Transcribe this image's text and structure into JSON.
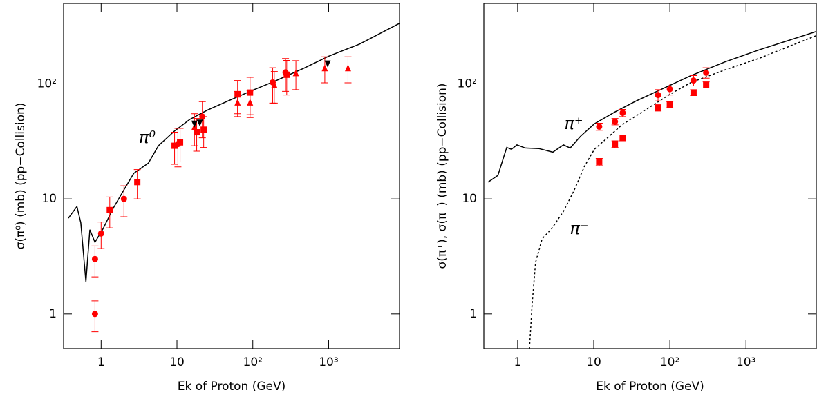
{
  "chart_data": [
    {
      "type": "scatter",
      "log_x": true,
      "log_y": true,
      "xlabel": "Ek of Proton (GeV)",
      "ylabel": "σ(π⁰) (mb) (pp−Collision)",
      "xlim": [
        0.32,
        8600
      ],
      "ylim": [
        0.5,
        500
      ],
      "xticks": [
        1,
        10,
        {
          "value": 100,
          "label": "10²"
        },
        {
          "value": 1000,
          "label": "10³"
        }
      ],
      "yticks": [
        1,
        10,
        {
          "value": 100,
          "label": "10²"
        }
      ],
      "annotations": [
        "π⁰"
      ],
      "series": [
        {
          "style": "solid",
          "color": "#000000",
          "x": [
            0.37,
            0.48,
            0.54,
            0.63,
            0.71,
            0.83,
            1.06,
            1.46,
            2.0,
            2.7,
            4.2,
            5.7,
            9.3,
            14.7,
            25,
            47,
            100,
            205,
            474,
            1000,
            2560,
            8600
          ],
          "values": [
            6.8,
            8.6,
            6.2,
            1.9,
            5.4,
            4.2,
            5.5,
            8.4,
            12,
            16.7,
            20.5,
            29,
            39,
            49,
            59,
            71,
            88,
            107,
            137,
            174,
            222,
            336
          ]
        },
        {
          "style": "circle",
          "color": "#ff0000",
          "x": [
            0.83,
            0.83,
            1.0,
            2.0,
            10.3,
            21.6,
            183,
            270
          ],
          "values": [
            3,
            1,
            5,
            10,
            30,
            52,
            103,
            126
          ],
          "errors": [
            0.9,
            0.3,
            1.3,
            3,
            11,
            18,
            35,
            40
          ]
        },
        {
          "style": "square",
          "color": "#ff0000",
          "x": [
            1.3,
            3.0,
            9.3,
            11,
            18.2,
            22.5,
            63,
            92,
            280
          ],
          "values": [
            8,
            14,
            29,
            31,
            38,
            40,
            81,
            84,
            120
          ],
          "errors": [
            2.4,
            4,
            9,
            10,
            12,
            12,
            26,
            30,
            40
          ]
        },
        {
          "style": "triangle",
          "color": "#ff0000",
          "x": [
            17,
            63,
            92,
            192,
            370,
            890,
            1800
          ],
          "values": [
            42,
            69,
            69,
            98,
            124,
            137,
            137
          ],
          "errors": [
            13,
            17,
            18,
            30,
            35,
            35,
            35
          ]
        },
        {
          "style": "triangle-down",
          "color": "#000000",
          "x": [
            17,
            20,
            970
          ],
          "values": [
            45,
            46,
            150
          ]
        }
      ]
    },
    {
      "type": "scatter",
      "log_x": true,
      "log_y": true,
      "xlabel": "Ek of Proton (GeV)",
      "ylabel": "σ(π⁺), σ(π⁻) (mb) (pp−Collision)",
      "xlim": [
        0.36,
        8400
      ],
      "ylim": [
        0.5,
        500
      ],
      "xticks": [
        1,
        10,
        {
          "value": 100,
          "label": "10²"
        },
        {
          "value": 1000,
          "label": "10³"
        }
      ],
      "yticks": [
        1,
        10,
        {
          "value": 100,
          "label": "10²"
        }
      ],
      "annotations": [
        "π⁺",
        "π⁻"
      ],
      "series": [
        {
          "style": "solid",
          "color": "#000000",
          "x": [
            0.41,
            0.55,
            0.72,
            0.83,
            0.98,
            1.26,
            1.9,
            2.9,
            4.0,
            4.9,
            6.7,
            10.2,
            19,
            36,
            100,
            190,
            540,
            1540,
            8300
          ],
          "values": [
            14,
            16,
            28,
            27,
            29.5,
            27.7,
            27.4,
            25.5,
            29.5,
            27.7,
            35,
            45,
            57,
            71,
            97,
            118,
            156,
            199,
            284
          ]
        },
        {
          "style": "dashed",
          "color": "#000000",
          "x": [
            1.43,
            1.55,
            1.72,
            2.1,
            2.8,
            4.0,
            5.5,
            7.5,
            10.2,
            23.5,
            100,
            190,
            540,
            1540,
            8300
          ],
          "values": [
            0.5,
            1.2,
            2.8,
            4.5,
            5.5,
            7.8,
            11.8,
            19,
            27,
            44,
            81,
            103,
            133,
            168,
            262
          ]
        },
        {
          "style": "circle",
          "color": "#ff0000",
          "x": [
            11.8,
            19,
            24,
            70,
            100,
            205,
            300
          ],
          "values": [
            42.5,
            47,
            56,
            80,
            90,
            107,
            125
          ],
          "errors": [
            3,
            3,
            4,
            9,
            10,
            11,
            13
          ]
        },
        {
          "style": "square",
          "color": "#ff0000",
          "x": [
            11.8,
            19,
            24,
            70,
            100,
            205,
            300
          ],
          "values": [
            21,
            30,
            34,
            62,
            66,
            84,
            98
          ],
          "errors": [
            1.5,
            2,
            2,
            4,
            4,
            5,
            6
          ]
        }
      ]
    }
  ]
}
